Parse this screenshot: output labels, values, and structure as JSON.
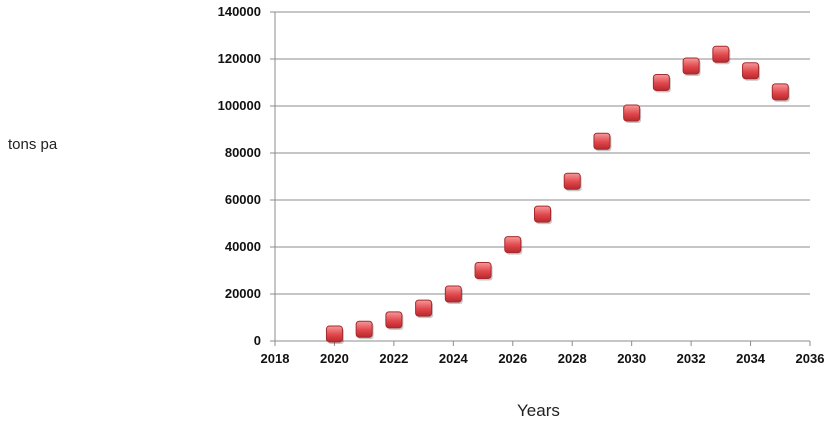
{
  "chart_data": {
    "type": "scatter",
    "xlabel": "Years",
    "ylabel": "tons pa",
    "xlim": [
      2018,
      2036
    ],
    "ylim": [
      0,
      140000
    ],
    "x_ticks": [
      2018,
      2020,
      2022,
      2024,
      2026,
      2028,
      2030,
      2032,
      2034,
      2036
    ],
    "y_ticks": [
      0,
      20000,
      40000,
      60000,
      80000,
      100000,
      120000,
      140000
    ],
    "grid": "horizontal",
    "marker": "square",
    "marker_color": "#e0474c",
    "series": [
      {
        "x": [
          2020,
          2021,
          2022,
          2023,
          2024,
          2025,
          2026,
          2027,
          2028,
          2029,
          2030,
          2031,
          2032,
          2033,
          2034,
          2035
        ],
        "y": [
          3000,
          5000,
          9000,
          14000,
          20000,
          30000,
          41000,
          54000,
          68000,
          85000,
          97000,
          110000,
          117000,
          122000,
          115000,
          106000
        ]
      }
    ]
  }
}
